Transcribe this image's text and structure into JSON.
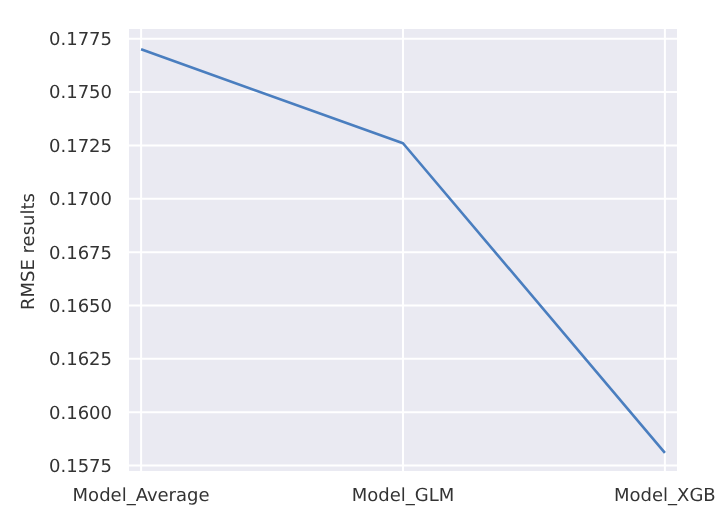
{
  "chart_data": {
    "type": "line",
    "ylabel": "RMSE results",
    "categories": [
      "Model_Average",
      "Model_GLM",
      "Model_XGB"
    ],
    "series": [
      {
        "color": "#4a7ebf",
        "values": [
          0.177,
          0.1726,
          0.1581
        ]
      }
    ],
    "ylim": [
      0.1572,
      0.178
    ],
    "yticks": [
      0.1575,
      {
        "value": 0.16,
        "label": "0.1600"
      },
      0.1625,
      {
        "value": 0.165,
        "label": "0.1650"
      },
      0.1675,
      {
        "value": 0.17,
        "label": "0.1700"
      },
      0.1725,
      {
        "value": 0.175,
        "label": "0.1750"
      },
      0.1775
    ],
    "grid": true,
    "legend": false,
    "marker": "none",
    "line_style": "solid"
  }
}
